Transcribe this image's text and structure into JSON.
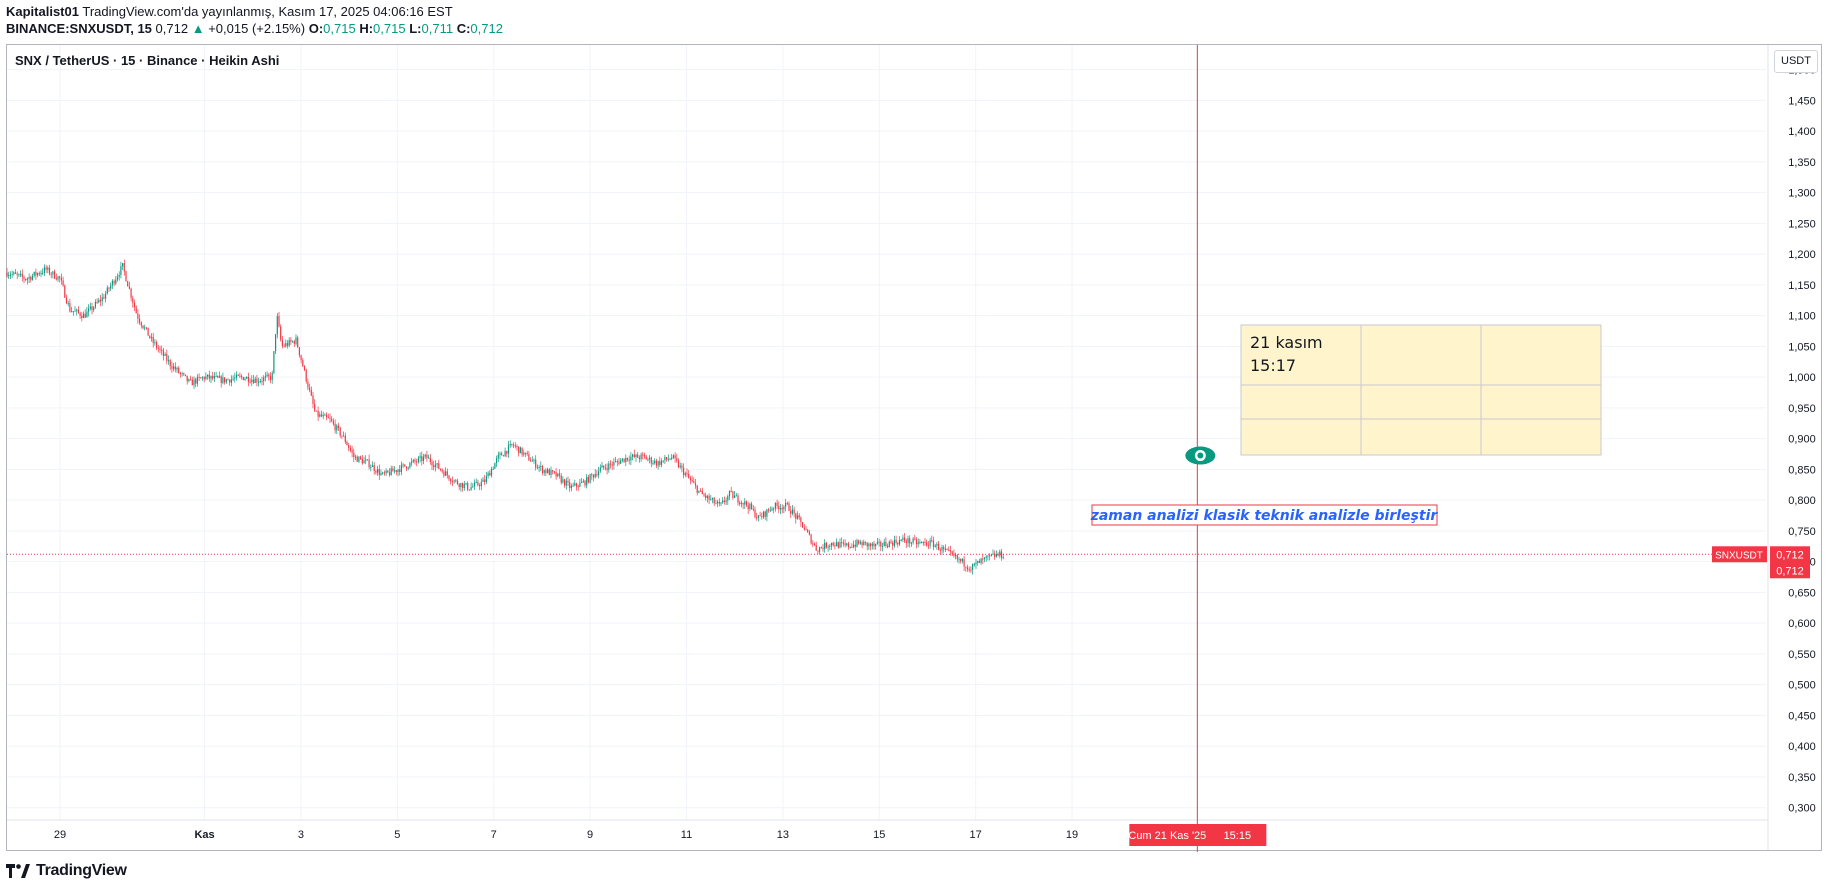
{
  "header": {
    "author": "Kapitalist01",
    "published": "TradingView.com'da yayınlanmış, Kasım 17, 2025 04:06:16 EST",
    "symbol": "BINANCE:SNXUSDT, 15",
    "last": "0,712",
    "change": "+0,015 (+2.15%)",
    "o_label": "O:",
    "o": "0,715",
    "h_label": "H:",
    "h": "0,715",
    "l_label": "L:",
    "l": "0,711",
    "c_label": "C:",
    "c": "0,712"
  },
  "legend": "SNX / TetherUS · 15 · Binance · Heikin Ashi",
  "currency_button": "USDT",
  "footer": {
    "logo_text": "TradingView"
  },
  "colors": {
    "up": "#089981",
    "down": "#f23645",
    "vline": "#f23645",
    "note_bg": "#fff4cc"
  },
  "chart_data": {
    "type": "line",
    "chart_style": "Heikin Ashi candlesticks",
    "ylim": [
      0.28,
      1.54
    ],
    "y_ticks": [
      "1,500",
      "1,450",
      "1,400",
      "1,350",
      "1,300",
      "1,250",
      "1,200",
      "1,150",
      "1,100",
      "1,050",
      "1,000",
      "0,950",
      "0,900",
      "0,850",
      "0,800",
      "0,750",
      "0,700",
      "0,650",
      "0,600",
      "0,550",
      "0,500",
      "0,450",
      "0,400",
      "0,350",
      "0,300"
    ],
    "y_tick_values": [
      1.5,
      1.45,
      1.4,
      1.35,
      1.3,
      1.25,
      1.2,
      1.15,
      1.1,
      1.05,
      1.0,
      0.95,
      0.9,
      0.85,
      0.8,
      0.75,
      0.7,
      0.65,
      0.6,
      0.55,
      0.5,
      0.45,
      0.4,
      0.35,
      0.3
    ],
    "x_ticks": [
      "29",
      "Kas",
      "3",
      "5",
      "7",
      "9",
      "11",
      "13",
      "15",
      "17",
      "19"
    ],
    "x_tick_days": [
      29,
      32,
      34,
      36,
      38,
      40,
      42,
      44,
      46,
      48,
      50
    ],
    "xlim": [
      27.9,
      64.4
    ],
    "grid": true,
    "series": [
      {
        "x": [
          27.9,
          28.3,
          28.7,
          29.0,
          29.2,
          29.5,
          29.9,
          30.3,
          30.6,
          30.9,
          31.3,
          31.7,
          32.0,
          32.4,
          32.8,
          33.1,
          33.4,
          33.5,
          33.6,
          33.9,
          34.1,
          34.3,
          34.6,
          34.9,
          35.1,
          35.4,
          35.7,
          36.0,
          36.3,
          36.6,
          36.9,
          37.2,
          37.5,
          37.8,
          38.1,
          38.4,
          38.7,
          39.0,
          39.3,
          39.6,
          39.9,
          40.2,
          40.5,
          40.8,
          41.1,
          41.4,
          41.7,
          42.0,
          42.3,
          42.5,
          42.7,
          42.9,
          43.1,
          43.3,
          43.5,
          43.8,
          44.1,
          44.4,
          44.7,
          45.0,
          45.3,
          45.6,
          45.9,
          46.2,
          46.5,
          46.8,
          47.1,
          47.4,
          47.7,
          47.9,
          48.1,
          48.4,
          48.6
        ],
        "y": [
          1.17,
          1.16,
          1.175,
          1.16,
          1.11,
          1.1,
          1.13,
          1.18,
          1.1,
          1.06,
          1.02,
          0.99,
          1.0,
          0.995,
          1.0,
          0.995,
          1.0,
          1.1,
          1.05,
          1.06,
          1.0,
          0.94,
          0.93,
          0.9,
          0.87,
          0.86,
          0.84,
          0.85,
          0.86,
          0.87,
          0.85,
          0.83,
          0.82,
          0.83,
          0.87,
          0.89,
          0.87,
          0.85,
          0.84,
          0.82,
          0.83,
          0.85,
          0.86,
          0.87,
          0.87,
          0.86,
          0.87,
          0.84,
          0.81,
          0.8,
          0.79,
          0.81,
          0.8,
          0.79,
          0.77,
          0.79,
          0.79,
          0.76,
          0.72,
          0.73,
          0.725,
          0.73,
          0.725,
          0.73,
          0.735,
          0.73,
          0.73,
          0.715,
          0.7,
          0.69,
          0.7,
          0.71,
          0.712
        ]
      }
    ],
    "last_price_label": "SNXUSDT",
    "last_price": [
      "0,712",
      "0,712"
    ],
    "annotations": {
      "time_note": [
        "21 kasım",
        "15:17"
      ],
      "text_note": "zaman analizi klasik teknik analizle birleştir",
      "crosshair_date": "Cum 21 Kas '25",
      "crosshair_time": "15:15",
      "vline_day": 52.6,
      "eye_price": 0.84
    }
  }
}
